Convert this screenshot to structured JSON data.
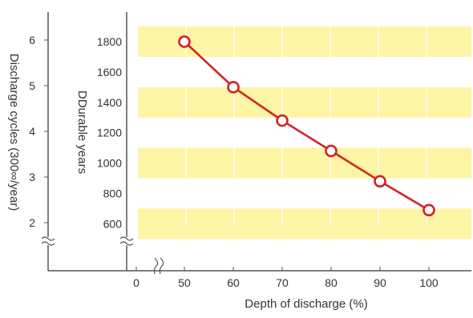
{
  "chart_data": {
    "type": "line",
    "xlabel": "Depth of discharge (%)",
    "ylabel": "DDurable years",
    "y2label": "Discharge cycles (300∞/year)",
    "x_ticks": [
      "0",
      "50",
      "60",
      "70",
      "80",
      "90",
      "100"
    ],
    "y_ticks": [
      "600",
      "800",
      "1000",
      "1200",
      "1400",
      "1600",
      "1800"
    ],
    "y2_ticks": [
      "2",
      "3",
      "4",
      "5",
      "6"
    ],
    "x": [
      50,
      60,
      70,
      80,
      90,
      100
    ],
    "y": [
      1800,
      1500,
      1280,
      1080,
      880,
      690
    ],
    "ylim": [
      600,
      1800
    ],
    "xlim": [
      50,
      100
    ],
    "axis_break": true,
    "grid": "alternating horizontal bands",
    "colors": {
      "line": "#d42222",
      "marker_fill": "#ffffff",
      "band": "#fdf5a6",
      "axis": "#555555"
    }
  }
}
